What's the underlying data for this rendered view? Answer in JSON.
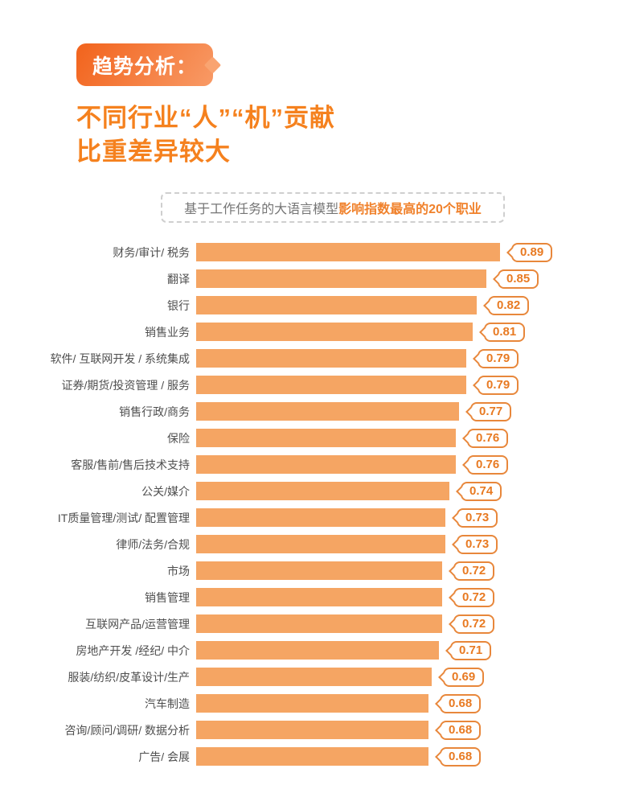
{
  "header": {
    "tag": "趋势分析：",
    "title_line1": "不同行业“人”“机”贡献",
    "title_line2": "比重差异较大"
  },
  "subtitle": {
    "prefix": "基于工作任务的大语言模型",
    "highlight": "影响指数最高的20个职业"
  },
  "chart_data": {
    "type": "bar",
    "orientation": "horizontal",
    "title": "基于工作任务的大语言模型影响指数最高的20个职业",
    "xlabel": "",
    "ylabel": "",
    "xlim": [
      0,
      0.95
    ],
    "grid": false,
    "value_labels_shown": true,
    "categories": [
      "财务/审计/ 税务",
      "翻译",
      "银行",
      "销售业务",
      "软件/ 互联网开发 / 系统集成",
      "证券/期货/投资管理 / 服务",
      "销售行政/商务",
      "保险",
      "客服/售前/售后技术支持",
      "公关/媒介",
      "IT质量管理/测试/ 配置管理",
      "律师/法务/合规",
      "市场",
      "销售管理",
      "互联网产品/运营管理",
      "房地产开发 /经纪/ 中介",
      "服装/纺织/皮革设计/生产",
      "汽车制造",
      "咨询/顾问/调研/ 数据分析",
      "广告/ 会展"
    ],
    "values": [
      0.89,
      0.85,
      0.82,
      0.81,
      0.79,
      0.79,
      0.77,
      0.76,
      0.76,
      0.74,
      0.73,
      0.73,
      0.72,
      0.72,
      0.72,
      0.71,
      0.69,
      0.68,
      0.68,
      0.68
    ]
  },
  "colors": {
    "bar": "#F5A563",
    "badge_border": "#E8873B",
    "badge_text": "#E87A22",
    "title_text": "#F5811E",
    "header_badge_gradient_start": "#F2631C",
    "header_badge_gradient_end": "#F89A66",
    "label_text": "#4F4F4F",
    "subtitle_text": "#757575",
    "subtitle_highlight": "#F0812B"
  }
}
